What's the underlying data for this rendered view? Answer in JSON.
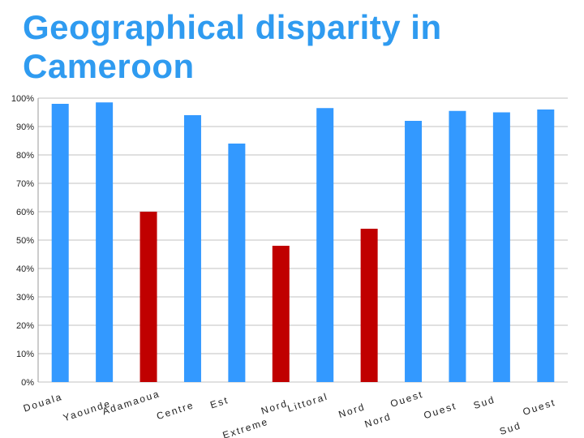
{
  "page": {
    "title": "Geographical disparity in Cameroon"
  },
  "colors": {
    "title": "#2f9bf0",
    "bar_blue": "#3399ff",
    "bar_red": "#c00000",
    "gridline": "#c0c0c0"
  },
  "chart_data": {
    "type": "bar",
    "title": "Geographical disparity in Cameroon",
    "xlabel": "",
    "ylabel": "",
    "ylim": [
      0,
      100
    ],
    "yticks": [
      "0%",
      "10%",
      "20%",
      "30%",
      "40%",
      "50%",
      "60%",
      "70%",
      "80%",
      "90%",
      "100%"
    ],
    "grid": true,
    "legend": "none",
    "categories": [
      "Douala",
      "Yaounde",
      "Adamaoua",
      "Centre",
      "Est",
      "Extreme Nord",
      "Littoral",
      "Nord",
      "Nord Ouest",
      "Ouest",
      "Sud",
      "Sud Ouest"
    ],
    "values": [
      98,
      98.5,
      60,
      94,
      84,
      48,
      96.5,
      54,
      92,
      95.5,
      95,
      96
    ],
    "bar_colors": [
      "#3399ff",
      "#3399ff",
      "#c00000",
      "#3399ff",
      "#3399ff",
      "#c00000",
      "#3399ff",
      "#c00000",
      "#3399ff",
      "#3399ff",
      "#3399ff",
      "#3399ff"
    ]
  }
}
